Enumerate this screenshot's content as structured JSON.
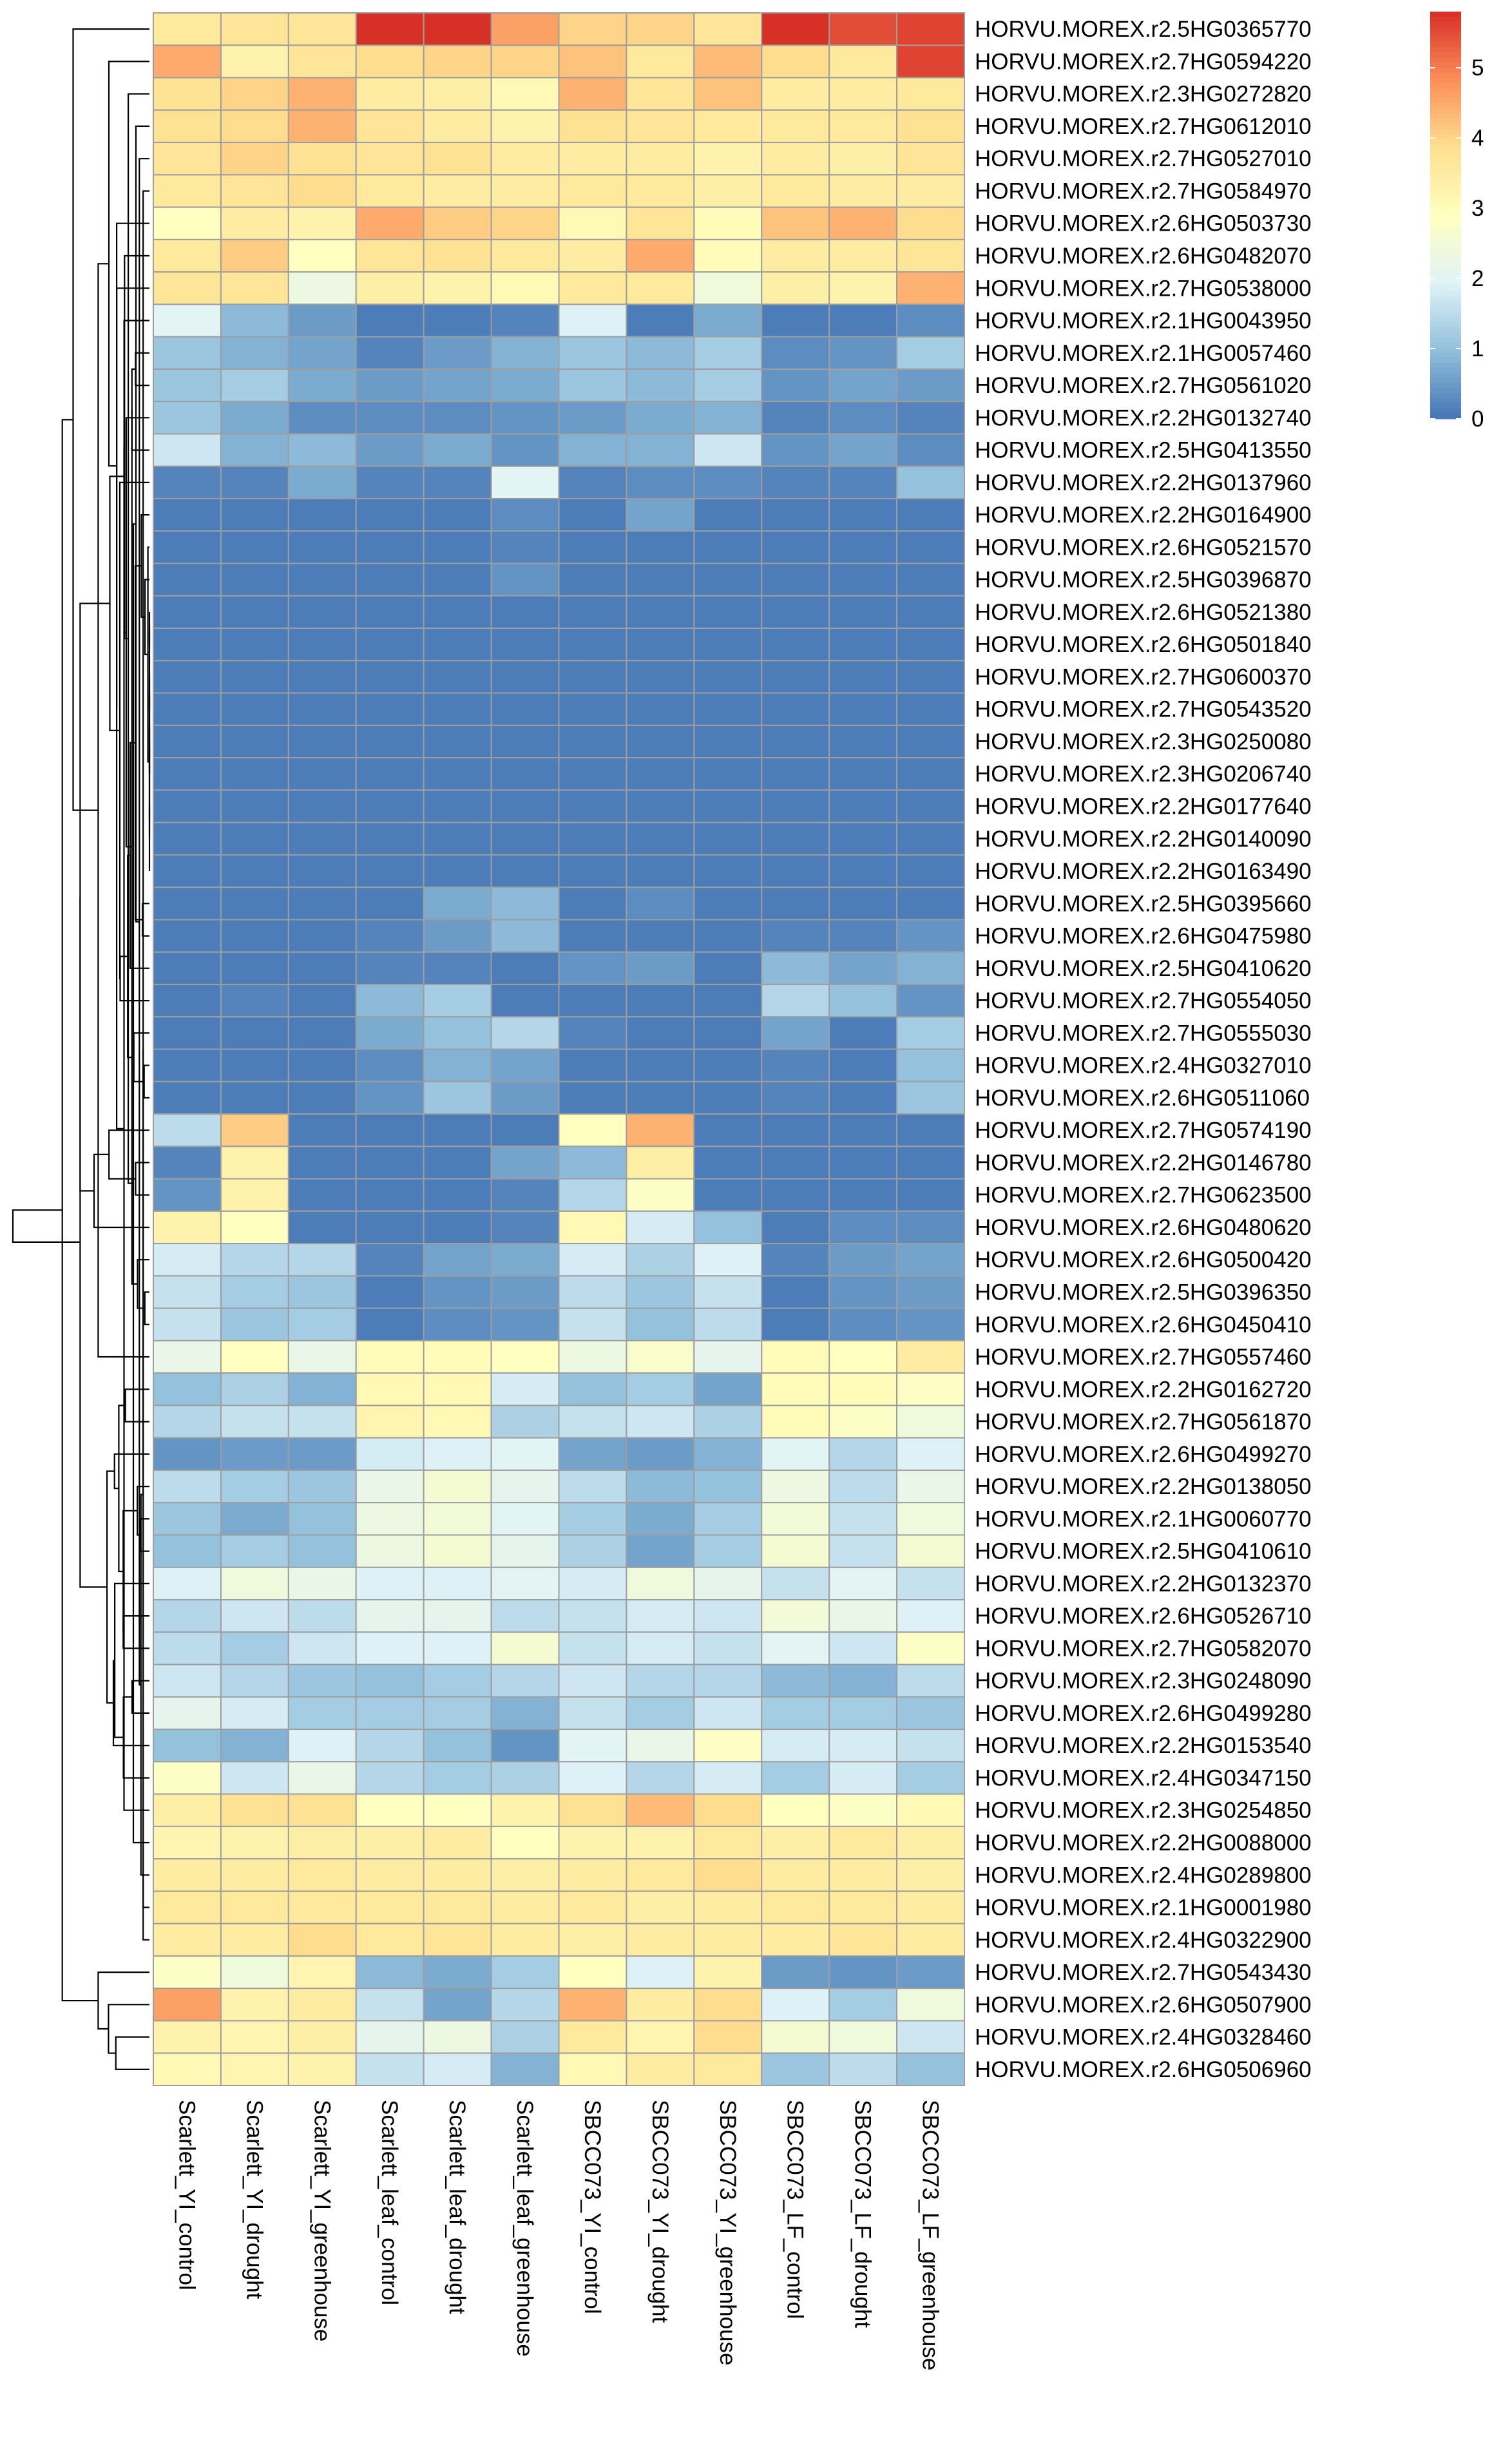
{
  "chart_data": {
    "type": "heatmap",
    "title": "",
    "xlabel": "",
    "ylabel": "",
    "columns": [
      "Scarlett_YI_control",
      "Scarlett_YI_drought",
      "Scarlett_YI_greenhouse",
      "Scarlett_leaf_control",
      "Scarlett_leaf_drought",
      "Scarlett_leaf_greenhouse",
      "SBCC073_YI_control",
      "SBCC073_YI_drought",
      "SBCC073_YI_greenhouse",
      "SBCC073_LF_control",
      "SBCC073_LF_drought",
      "SBCC073_LF_greenhouse"
    ],
    "rows": [
      {
        "gene": "HORVU.MOREX.r2.5HG0365770",
        "values": [
          3.6,
          3.7,
          3.7,
          5.8,
          5.8,
          4.6,
          4.0,
          4.0,
          3.7,
          5.8,
          5.5,
          5.6
        ]
      },
      {
        "gene": "HORVU.MOREX.r2.7HG0594220",
        "values": [
          4.5,
          3.3,
          3.7,
          3.9,
          4.0,
          4.0,
          4.2,
          3.6,
          4.3,
          3.9,
          3.6,
          5.6
        ]
      },
      {
        "gene": "HORVU.MOREX.r2.3HG0272820",
        "values": [
          3.8,
          4.0,
          4.4,
          3.5,
          3.4,
          3.1,
          4.4,
          3.7,
          4.2,
          3.5,
          3.5,
          3.6
        ]
      },
      {
        "gene": "HORVU.MOREX.r2.7HG0612010",
        "values": [
          3.8,
          3.9,
          4.4,
          3.7,
          3.5,
          3.3,
          3.8,
          3.7,
          3.6,
          3.6,
          3.6,
          3.8
        ]
      },
      {
        "gene": "HORVU.MOREX.r2.7HG0527010",
        "values": [
          3.7,
          4.0,
          3.8,
          3.7,
          3.8,
          3.5,
          3.5,
          3.5,
          3.3,
          3.5,
          3.4,
          3.7
        ]
      },
      {
        "gene": "HORVU.MOREX.r2.7HG0584970",
        "values": [
          3.6,
          3.7,
          3.9,
          3.6,
          3.5,
          3.5,
          3.6,
          3.6,
          3.4,
          3.6,
          3.5,
          3.5
        ]
      },
      {
        "gene": "HORVU.MOREX.r2.6HG0503730",
        "values": [
          2.9,
          3.5,
          3.3,
          4.5,
          4.1,
          4.0,
          3.1,
          3.7,
          3.0,
          4.2,
          4.4,
          3.9
        ]
      },
      {
        "gene": "HORVU.MOREX.r2.6HG0482070",
        "values": [
          3.6,
          4.1,
          2.9,
          3.7,
          3.8,
          3.6,
          3.5,
          4.5,
          3.0,
          3.5,
          3.5,
          3.7
        ]
      },
      {
        "gene": "HORVU.MOREX.r2.7HG0538000",
        "values": [
          3.7,
          3.7,
          2.3,
          3.4,
          3.3,
          3.1,
          3.6,
          3.6,
          2.4,
          3.4,
          3.3,
          4.4
        ]
      },
      {
        "gene": "HORVU.MOREX.r2.1HG0043950",
        "values": [
          2.0,
          0.9,
          0.5,
          0.1,
          0.1,
          0.2,
          1.9,
          0.1,
          0.7,
          0.1,
          0.1,
          0.3
        ]
      },
      {
        "gene": "HORVU.MOREX.r2.1HG0057460",
        "values": [
          1.1,
          0.8,
          0.6,
          0.2,
          0.5,
          0.8,
          1.1,
          0.9,
          1.2,
          0.3,
          0.4,
          1.2
        ]
      },
      {
        "gene": "HORVU.MOREX.r2.7HG0561020",
        "values": [
          1.1,
          1.2,
          0.7,
          0.5,
          0.6,
          0.7,
          1.1,
          0.9,
          1.2,
          0.4,
          0.6,
          0.5
        ]
      },
      {
        "gene": "HORVU.MOREX.r2.2HG0132740",
        "values": [
          1.1,
          0.7,
          0.3,
          0.3,
          0.3,
          0.4,
          0.5,
          0.7,
          0.8,
          0.2,
          0.3,
          0.2
        ]
      },
      {
        "gene": "HORVU.MOREX.r2.5HG0413550",
        "values": [
          1.7,
          0.8,
          0.9,
          0.5,
          0.7,
          0.4,
          0.8,
          0.8,
          1.7,
          0.4,
          0.6,
          0.3
        ]
      },
      {
        "gene": "HORVU.MOREX.r2.2HG0137960",
        "values": [
          0.2,
          0.2,
          0.7,
          0.2,
          0.2,
          2.0,
          0.2,
          0.3,
          0.3,
          0.2,
          0.2,
          1.0
        ]
      },
      {
        "gene": "HORVU.MOREX.r2.2HG0164900",
        "values": [
          0.1,
          0.1,
          0.1,
          0.1,
          0.1,
          0.3,
          0.1,
          0.6,
          0.1,
          0.1,
          0.1,
          0.1
        ]
      },
      {
        "gene": "HORVU.MOREX.r2.6HG0521570",
        "values": [
          0.1,
          0.1,
          0.1,
          0.1,
          0.1,
          0.2,
          0.1,
          0.1,
          0.1,
          0.1,
          0.1,
          0.1
        ]
      },
      {
        "gene": "HORVU.MOREX.r2.5HG0396870",
        "values": [
          0.1,
          0.1,
          0.1,
          0.1,
          0.1,
          0.4,
          0.1,
          0.1,
          0.1,
          0.1,
          0.1,
          0.1
        ]
      },
      {
        "gene": "HORVU.MOREX.r2.6HG0521380",
        "values": [
          0.1,
          0.1,
          0.1,
          0.1,
          0.1,
          0.1,
          0.1,
          0.1,
          0.1,
          0.1,
          0.1,
          0.1
        ]
      },
      {
        "gene": "HORVU.MOREX.r2.6HG0501840",
        "values": [
          0.1,
          0.1,
          0.1,
          0.1,
          0.1,
          0.1,
          0.1,
          0.1,
          0.1,
          0.1,
          0.1,
          0.1
        ]
      },
      {
        "gene": "HORVU.MOREX.r2.7HG0600370",
        "values": [
          0.1,
          0.1,
          0.1,
          0.1,
          0.1,
          0.1,
          0.1,
          0.1,
          0.1,
          0.1,
          0.1,
          0.1
        ]
      },
      {
        "gene": "HORVU.MOREX.r2.7HG0543520",
        "values": [
          0.1,
          0.1,
          0.1,
          0.1,
          0.1,
          0.1,
          0.1,
          0.1,
          0.1,
          0.1,
          0.1,
          0.1
        ]
      },
      {
        "gene": "HORVU.MOREX.r2.3HG0250080",
        "values": [
          0.1,
          0.1,
          0.1,
          0.1,
          0.1,
          0.1,
          0.1,
          0.1,
          0.1,
          0.1,
          0.1,
          0.1
        ]
      },
      {
        "gene": "HORVU.MOREX.r2.3HG0206740",
        "values": [
          0.1,
          0.1,
          0.1,
          0.1,
          0.1,
          0.1,
          0.1,
          0.1,
          0.1,
          0.1,
          0.1,
          0.1
        ]
      },
      {
        "gene": "HORVU.MOREX.r2.2HG0177640",
        "values": [
          0.1,
          0.1,
          0.1,
          0.1,
          0.1,
          0.1,
          0.1,
          0.1,
          0.1,
          0.1,
          0.1,
          0.1
        ]
      },
      {
        "gene": "HORVU.MOREX.r2.2HG0140090",
        "values": [
          0.1,
          0.1,
          0.1,
          0.1,
          0.1,
          0.1,
          0.1,
          0.1,
          0.1,
          0.1,
          0.1,
          0.1
        ]
      },
      {
        "gene": "HORVU.MOREX.r2.2HG0163490",
        "values": [
          0.1,
          0.1,
          0.1,
          0.1,
          0.1,
          0.1,
          0.1,
          0.1,
          0.1,
          0.1,
          0.1,
          0.1
        ]
      },
      {
        "gene": "HORVU.MOREX.r2.5HG0395660",
        "values": [
          0.1,
          0.1,
          0.1,
          0.1,
          0.7,
          0.9,
          0.1,
          0.3,
          0.1,
          0.1,
          0.1,
          0.1
        ]
      },
      {
        "gene": "HORVU.MOREX.r2.6HG0475980",
        "values": [
          0.1,
          0.1,
          0.1,
          0.2,
          0.5,
          0.9,
          0.1,
          0.1,
          0.1,
          0.2,
          0.2,
          0.4
        ]
      },
      {
        "gene": "HORVU.MOREX.r2.5HG0410620",
        "values": [
          0.1,
          0.1,
          0.1,
          0.2,
          0.2,
          0.1,
          0.4,
          0.5,
          0.1,
          0.9,
          0.6,
          0.8
        ]
      },
      {
        "gene": "HORVU.MOREX.r2.7HG0554050",
        "values": [
          0.1,
          0.2,
          0.1,
          0.9,
          1.2,
          0.1,
          0.1,
          0.1,
          0.1,
          1.4,
          1.0,
          0.4
        ]
      },
      {
        "gene": "HORVU.MOREX.r2.7HG0555030",
        "values": [
          0.1,
          0.1,
          0.1,
          0.7,
          1.0,
          1.4,
          0.2,
          0.1,
          0.1,
          0.6,
          0.1,
          1.2
        ]
      },
      {
        "gene": "HORVU.MOREX.r2.4HG0327010",
        "values": [
          0.1,
          0.1,
          0.1,
          0.3,
          0.8,
          0.6,
          0.1,
          0.1,
          0.1,
          0.2,
          0.1,
          1.0
        ]
      },
      {
        "gene": "HORVU.MOREX.r2.6HG0511060",
        "values": [
          0.1,
          0.1,
          0.1,
          0.4,
          1.1,
          0.5,
          0.1,
          0.1,
          0.1,
          0.2,
          0.1,
          1.1
        ]
      },
      {
        "gene": "HORVU.MOREX.r2.7HG0574190",
        "values": [
          1.5,
          4.1,
          0.1,
          0.1,
          0.1,
          0.1,
          2.9,
          4.4,
          0.1,
          0.1,
          0.1,
          0.1
        ]
      },
      {
        "gene": "HORVU.MOREX.r2.2HG0146780",
        "values": [
          0.2,
          3.3,
          0.1,
          0.1,
          0.1,
          0.6,
          0.9,
          3.4,
          0.1,
          0.1,
          0.1,
          0.1
        ]
      },
      {
        "gene": "HORVU.MOREX.r2.7HG0623500",
        "values": [
          0.4,
          3.3,
          0.1,
          0.1,
          0.1,
          0.2,
          1.4,
          2.8,
          0.1,
          0.1,
          0.1,
          0.1
        ]
      },
      {
        "gene": "HORVU.MOREX.r2.6HG0480620",
        "values": [
          3.3,
          2.9,
          0.1,
          0.1,
          0.1,
          0.2,
          3.1,
          1.8,
          1.0,
          0.1,
          0.3,
          0.3
        ]
      },
      {
        "gene": "HORVU.MOREX.r2.6HG0500420",
        "values": [
          1.8,
          1.4,
          1.4,
          0.2,
          0.6,
          0.7,
          1.8,
          1.3,
          1.9,
          0.2,
          0.5,
          0.6
        ]
      },
      {
        "gene": "HORVU.MOREX.r2.5HG0396350",
        "values": [
          1.6,
          1.2,
          1.1,
          0.1,
          0.4,
          0.5,
          1.5,
          1.1,
          1.6,
          0.1,
          0.4,
          0.5
        ]
      },
      {
        "gene": "HORVU.MOREX.r2.6HG0450410",
        "values": [
          1.6,
          1.1,
          1.2,
          0.1,
          0.3,
          0.4,
          1.6,
          1.0,
          1.5,
          0.1,
          0.3,
          0.4
        ]
      },
      {
        "gene": "HORVU.MOREX.r2.7HG0557460",
        "values": [
          2.2,
          2.9,
          2.2,
          3.0,
          3.0,
          2.9,
          2.3,
          2.7,
          2.1,
          3.0,
          2.9,
          3.5
        ]
      },
      {
        "gene": "HORVU.MOREX.r2.2HG0162720",
        "values": [
          1.0,
          1.3,
          0.8,
          3.1,
          3.1,
          1.8,
          1.0,
          1.2,
          0.6,
          3.0,
          3.0,
          2.8
        ]
      },
      {
        "gene": "HORVU.MOREX.r2.7HG0561870",
        "values": [
          1.4,
          1.6,
          1.6,
          3.2,
          3.1,
          1.3,
          1.6,
          1.7,
          1.3,
          3.0,
          2.8,
          2.4
        ]
      },
      {
        "gene": "HORVU.MOREX.r2.6HG0499270",
        "values": [
          0.4,
          0.5,
          0.5,
          1.8,
          1.9,
          2.0,
          0.6,
          0.5,
          0.8,
          2.0,
          1.4,
          1.9
        ]
      },
      {
        "gene": "HORVU.MOREX.r2.2HG0138050",
        "values": [
          1.5,
          1.2,
          1.1,
          2.2,
          2.6,
          2.1,
          1.5,
          0.9,
          1.0,
          2.3,
          1.5,
          2.2
        ]
      },
      {
        "gene": "HORVU.MOREX.r2.1HG0060770",
        "values": [
          1.1,
          0.7,
          1.0,
          2.3,
          2.5,
          2.0,
          1.2,
          0.7,
          1.2,
          2.5,
          1.6,
          2.4
        ]
      },
      {
        "gene": "HORVU.MOREX.r2.5HG0410610",
        "values": [
          1.0,
          1.2,
          1.0,
          2.3,
          2.6,
          2.1,
          1.3,
          0.6,
          1.2,
          2.6,
          1.6,
          2.6
        ]
      },
      {
        "gene": "HORVU.MOREX.r2.2HG0132370",
        "values": [
          1.9,
          2.4,
          2.2,
          1.9,
          1.9,
          2.0,
          1.8,
          2.4,
          2.1,
          1.6,
          2.0,
          1.6
        ]
      },
      {
        "gene": "HORVU.MOREX.r2.6HG0526710",
        "values": [
          1.4,
          1.7,
          1.5,
          2.1,
          2.1,
          1.5,
          1.6,
          1.8,
          1.7,
          2.5,
          2.2,
          1.9
        ]
      },
      {
        "gene": "HORVU.MOREX.r2.7HG0582070",
        "values": [
          1.5,
          1.2,
          1.7,
          1.9,
          1.9,
          2.6,
          1.6,
          1.8,
          1.6,
          2.0,
          1.7,
          2.8
        ]
      },
      {
        "gene": "HORVU.MOREX.r2.3HG0248090",
        "values": [
          1.7,
          1.4,
          1.1,
          1.0,
          1.2,
          1.4,
          1.7,
          1.4,
          1.4,
          0.9,
          0.8,
          1.5
        ]
      },
      {
        "gene": "HORVU.MOREX.r2.6HG0499280",
        "values": [
          2.1,
          1.8,
          1.2,
          1.2,
          1.2,
          0.8,
          1.6,
          1.2,
          1.7,
          1.2,
          1.2,
          1.1
        ]
      },
      {
        "gene": "HORVU.MOREX.r2.2HG0153540",
        "values": [
          1.0,
          0.8,
          1.9,
          1.4,
          1.0,
          0.4,
          2.0,
          2.2,
          2.8,
          1.8,
          1.8,
          1.6
        ]
      },
      {
        "gene": "HORVU.MOREX.r2.4HG0347150",
        "values": [
          2.8,
          1.7,
          2.2,
          1.4,
          1.2,
          1.3,
          1.9,
          1.4,
          1.8,
          1.2,
          1.8,
          1.2
        ]
      },
      {
        "gene": "HORVU.MOREX.r2.3HG0254850",
        "values": [
          3.4,
          3.8,
          3.8,
          2.9,
          2.9,
          3.3,
          3.8,
          4.3,
          3.9,
          2.9,
          2.8,
          3.1
        ]
      },
      {
        "gene": "HORVU.MOREX.r2.2HG0088000",
        "values": [
          3.2,
          3.3,
          3.4,
          3.4,
          3.5,
          2.9,
          3.3,
          3.3,
          3.6,
          3.4,
          3.6,
          3.4
        ]
      },
      {
        "gene": "HORVU.MOREX.r2.4HG0289800",
        "values": [
          3.5,
          3.5,
          3.6,
          3.5,
          3.5,
          3.4,
          3.5,
          3.6,
          3.9,
          3.5,
          3.5,
          3.4
        ]
      },
      {
        "gene": "HORVU.MOREX.r2.1HG0001980",
        "values": [
          3.6,
          3.6,
          3.6,
          3.6,
          3.6,
          3.5,
          3.6,
          3.4,
          3.5,
          3.6,
          3.6,
          3.5
        ]
      },
      {
        "gene": "HORVU.MOREX.r2.4HG0322900",
        "values": [
          3.5,
          3.5,
          3.9,
          3.6,
          3.7,
          3.5,
          3.4,
          3.5,
          3.5,
          3.5,
          3.7,
          3.5
        ]
      },
      {
        "gene": "HORVU.MOREX.r2.7HG0543430",
        "values": [
          2.8,
          2.4,
          3.2,
          0.9,
          0.7,
          1.2,
          2.9,
          1.9,
          3.3,
          0.5,
          0.4,
          0.5
        ]
      },
      {
        "gene": "HORVU.MOREX.r2.6HG0507900",
        "values": [
          4.6,
          3.3,
          3.5,
          1.6,
          0.6,
          1.4,
          4.4,
          3.5,
          3.9,
          1.9,
          1.2,
          2.4
        ]
      },
      {
        "gene": "HORVU.MOREX.r2.4HG0328460",
        "values": [
          3.3,
          3.2,
          3.4,
          2.1,
          2.3,
          1.3,
          3.6,
          3.2,
          3.9,
          2.6,
          2.4,
          1.7
        ]
      },
      {
        "gene": "HORVU.MOREX.r2.6HG0506960",
        "values": [
          3.1,
          3.2,
          3.3,
          1.6,
          1.8,
          0.8,
          3.1,
          3.5,
          3.6,
          1.1,
          1.5,
          1.0
        ]
      }
    ],
    "colorbar": {
      "min": 0,
      "max": 5.8,
      "ticks": [
        "0",
        "1",
        "2",
        "3",
        "4",
        "5"
      ],
      "colors": [
        "#4575b4",
        "#91bfdb",
        "#e0f3f8",
        "#ffffbf",
        "#fee090",
        "#fc8d59",
        "#d73027"
      ]
    },
    "grid": true,
    "legend": "right",
    "row_dendrogram": true
  }
}
